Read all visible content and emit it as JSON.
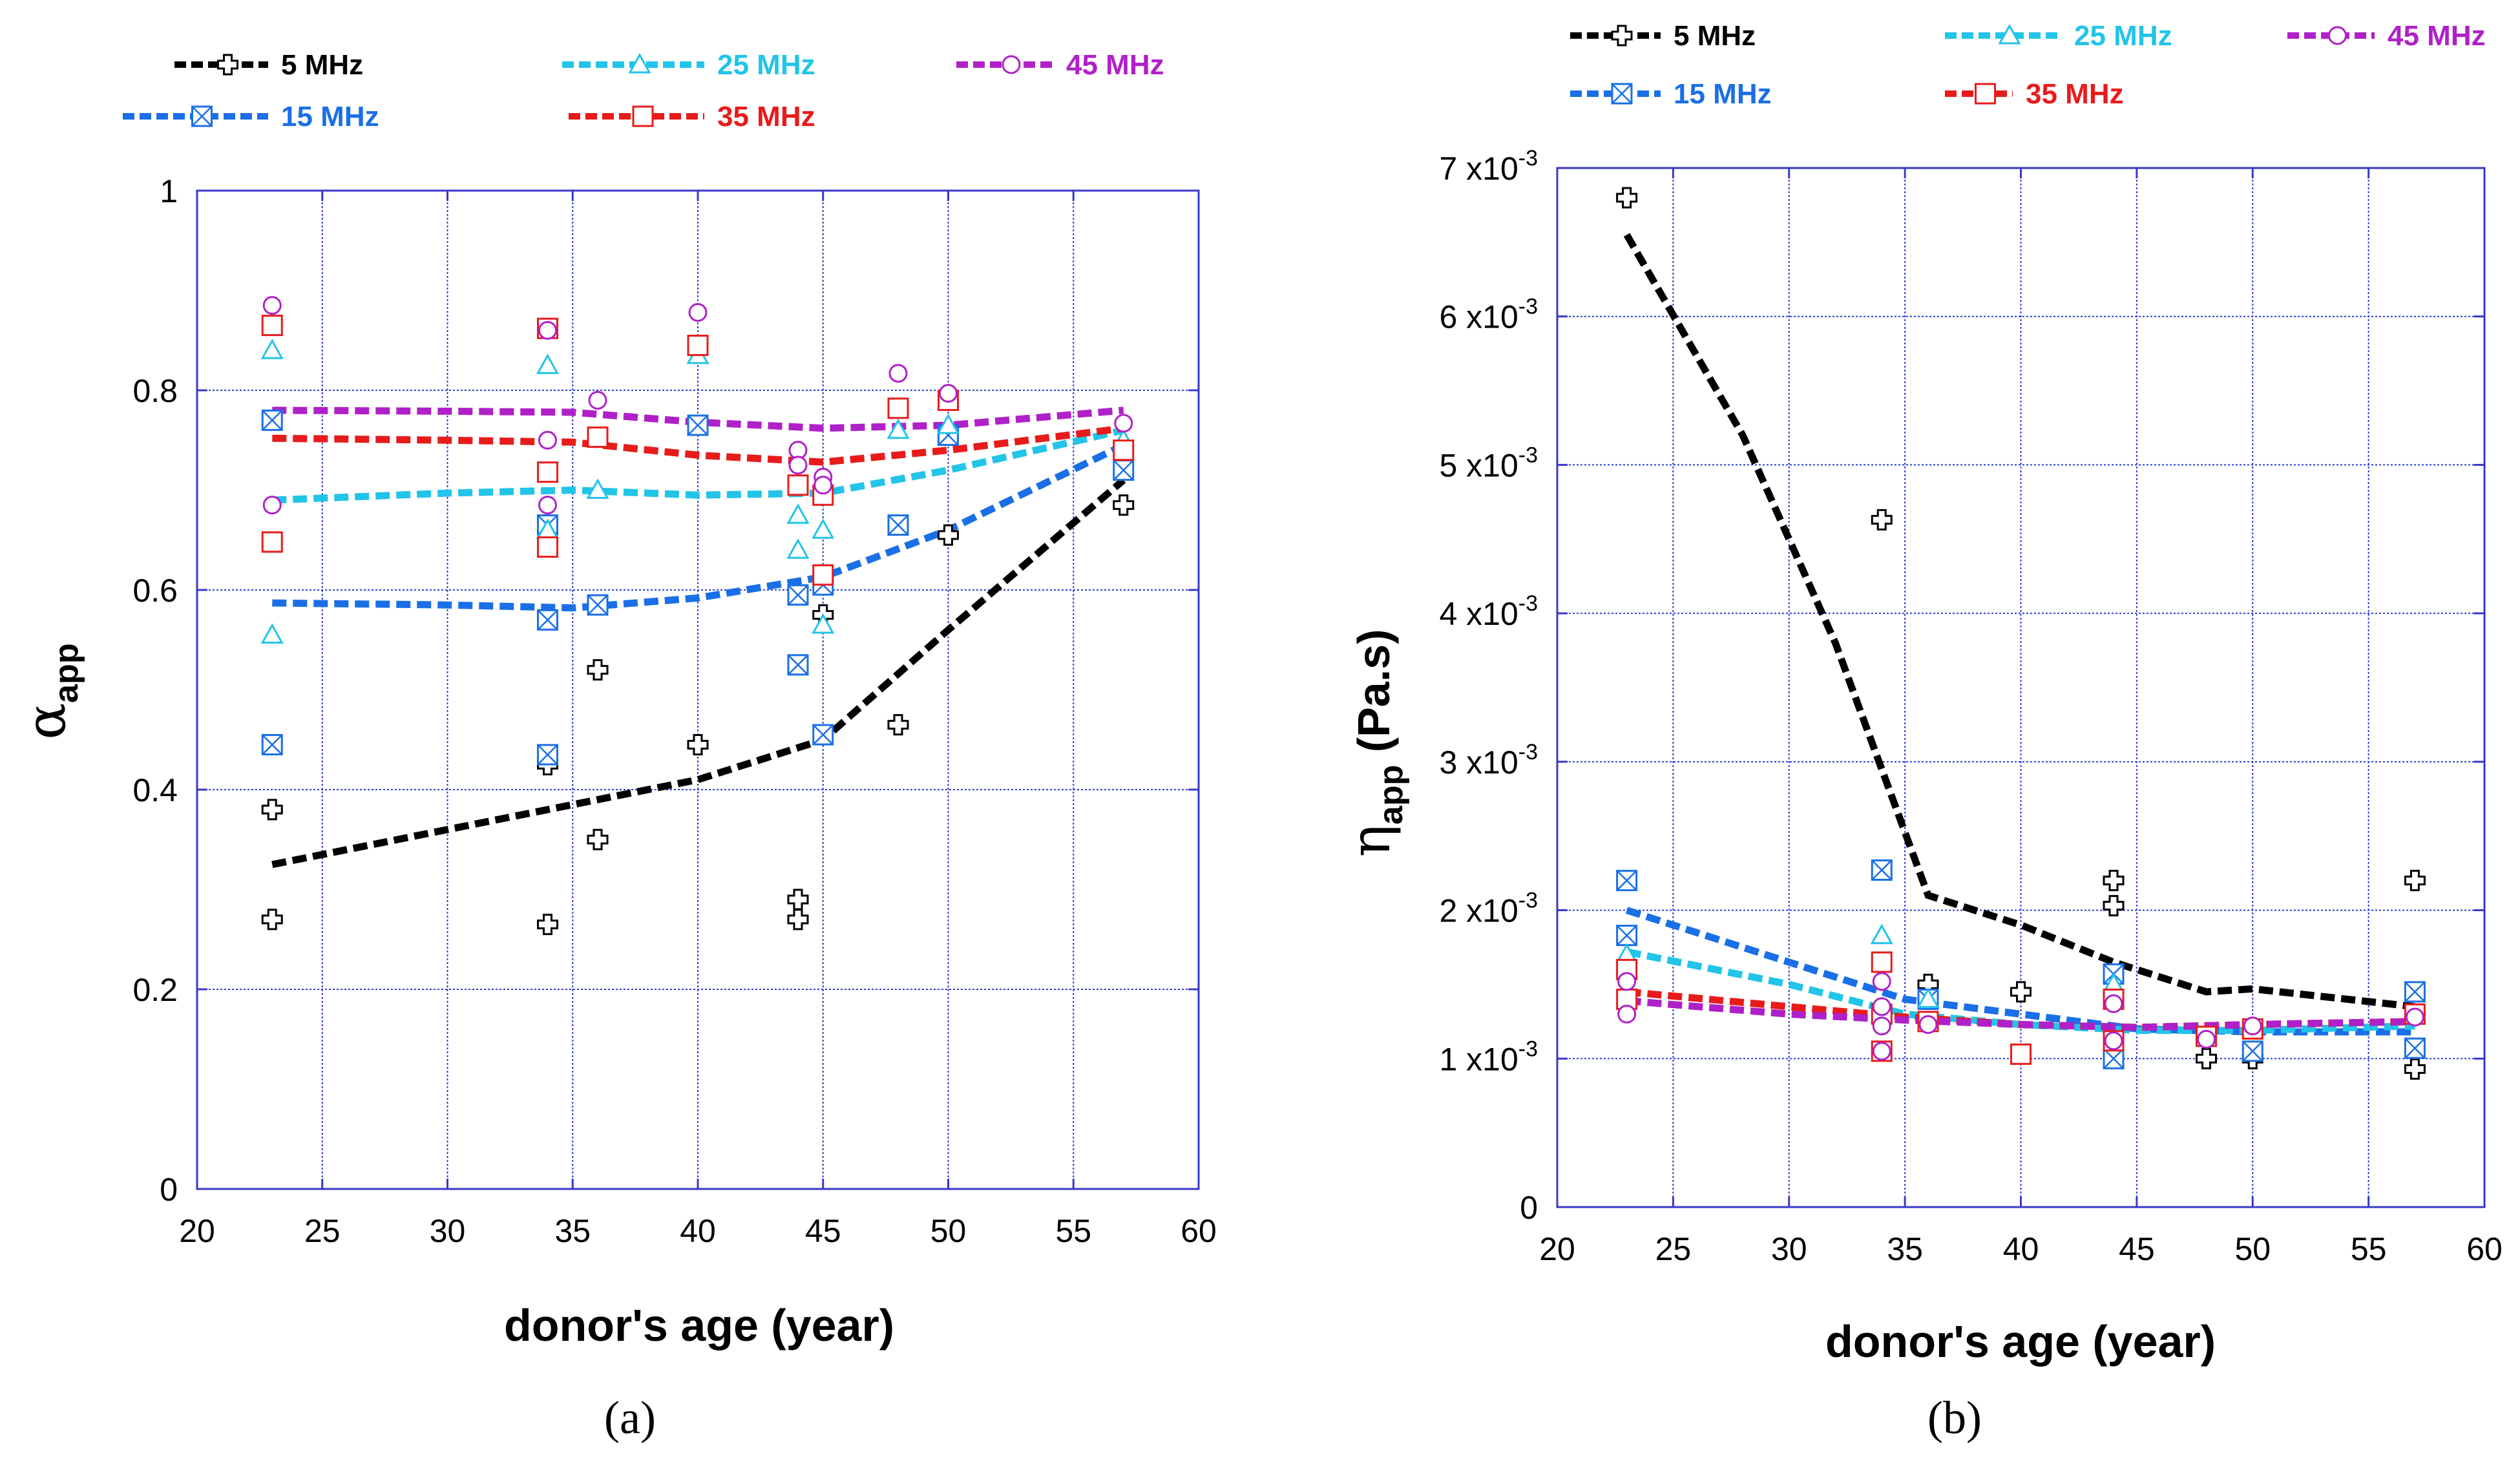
{
  "colors": {
    "5 MHz": "#000000",
    "15 MHz": "#1a6fe6",
    "25 MHz": "#22c4e8",
    "35 MHz": "#e81b1b",
    "45 MHz": "#b020c8",
    "grid": "#2a3ad6",
    "axis": "#3838c8"
  },
  "chart_data": [
    {
      "type": "line",
      "panel": "a",
      "panel_label": "(a)",
      "xlabel": "donor's age (year)",
      "ylabel_main": "α",
      "ylabel_sub": "app",
      "xlim": [
        20,
        60
      ],
      "ylim": [
        0,
        1
      ],
      "xticks": [
        20,
        25,
        30,
        35,
        40,
        45,
        50,
        55,
        60
      ],
      "yticks": [
        0,
        0.2,
        0.4,
        0.6,
        0.8,
        1
      ],
      "ytick_labels": [
        "0",
        "0.2",
        "0.4",
        "0.6",
        "0.8",
        "1"
      ],
      "legend": {
        "position": "top",
        "entries": [
          "5 MHz",
          "15 MHz",
          "25 MHz",
          "35 MHz",
          "45 MHz"
        ]
      },
      "series": [
        {
          "name": "5 MHz",
          "marker": "plus",
          "fit": [
            [
              23,
              0.325
            ],
            [
              30,
              0.36
            ],
            [
              35,
              0.385
            ],
            [
              40,
              0.41
            ],
            [
              45,
              0.45
            ],
            [
              50,
              0.56
            ],
            [
              57,
              0.71
            ]
          ],
          "points": [
            [
              23,
              0.38
            ],
            [
              23,
              0.27
            ],
            [
              34,
              0.425
            ],
            [
              34,
              0.265
            ],
            [
              36,
              0.52
            ],
            [
              36,
              0.35
            ],
            [
              40,
              0.445
            ],
            [
              44,
              0.29
            ],
            [
              44,
              0.27
            ],
            [
              45,
              0.575
            ],
            [
              48,
              0.465
            ],
            [
              50,
              0.655
            ],
            [
              57,
              0.685
            ]
          ]
        },
        {
          "name": "15 MHz",
          "marker": "xbox",
          "fit": [
            [
              23,
              0.587
            ],
            [
              30,
              0.585
            ],
            [
              35,
              0.582
            ],
            [
              40,
              0.592
            ],
            [
              45,
              0.613
            ],
            [
              50,
              0.66
            ],
            [
              57,
              0.745
            ]
          ],
          "points": [
            [
              23,
              0.77
            ],
            [
              23,
              0.445
            ],
            [
              34,
              0.665
            ],
            [
              34,
              0.57
            ],
            [
              34,
              0.435
            ],
            [
              36,
              0.585
            ],
            [
              40,
              0.765
            ],
            [
              44,
              0.595
            ],
            [
              44,
              0.525
            ],
            [
              45,
              0.605
            ],
            [
              45,
              0.455
            ],
            [
              48,
              0.665
            ],
            [
              50,
              0.755
            ],
            [
              57,
              0.72
            ]
          ]
        },
        {
          "name": "25 MHz",
          "marker": "triangle",
          "fit": [
            [
              23,
              0.69
            ],
            [
              30,
              0.697
            ],
            [
              35,
              0.7
            ],
            [
              40,
              0.695
            ],
            [
              45,
              0.697
            ],
            [
              50,
              0.72
            ],
            [
              57,
              0.76
            ]
          ],
          "points": [
            [
              23,
              0.84
            ],
            [
              23,
              0.555
            ],
            [
              34,
              0.825
            ],
            [
              34,
              0.66
            ],
            [
              36,
              0.7
            ],
            [
              40,
              0.835
            ],
            [
              44,
              0.675
            ],
            [
              44,
              0.64
            ],
            [
              45,
              0.66
            ],
            [
              45,
              0.565
            ],
            [
              48,
              0.76
            ],
            [
              50,
              0.765
            ],
            [
              57,
              0.75
            ]
          ]
        },
        {
          "name": "35 MHz",
          "marker": "square",
          "fit": [
            [
              23,
              0.752
            ],
            [
              30,
              0.75
            ],
            [
              35,
              0.748
            ],
            [
              40,
              0.735
            ],
            [
              45,
              0.728
            ],
            [
              50,
              0.74
            ],
            [
              57,
              0.762
            ]
          ],
          "points": [
            [
              23,
              0.865
            ],
            [
              23,
              0.648
            ],
            [
              34,
              0.862
            ],
            [
              34,
              0.718
            ],
            [
              34,
              0.643
            ],
            [
              36,
              0.753
            ],
            [
              40,
              0.845
            ],
            [
              44,
              0.705
            ],
            [
              45,
              0.695
            ],
            [
              45,
              0.615
            ],
            [
              48,
              0.782
            ],
            [
              50,
              0.79
            ],
            [
              57,
              0.74
            ]
          ]
        },
        {
          "name": "45 MHz",
          "marker": "circle",
          "fit": [
            [
              23,
              0.78
            ],
            [
              30,
              0.779
            ],
            [
              35,
              0.778
            ],
            [
              40,
              0.768
            ],
            [
              45,
              0.762
            ],
            [
              50,
              0.765
            ],
            [
              57,
              0.78
            ]
          ],
          "points": [
            [
              23,
              0.885
            ],
            [
              23,
              0.685
            ],
            [
              34,
              0.86
            ],
            [
              34,
              0.75
            ],
            [
              34,
              0.685
            ],
            [
              36,
              0.79
            ],
            [
              40,
              0.878
            ],
            [
              44,
              0.74
            ],
            [
              44,
              0.725
            ],
            [
              45,
              0.713
            ],
            [
              45,
              0.705
            ],
            [
              48,
              0.817
            ],
            [
              50,
              0.797
            ],
            [
              57,
              0.767
            ]
          ]
        }
      ]
    },
    {
      "type": "line",
      "panel": "b",
      "panel_label": "(b)",
      "xlabel": "donor's age (year)",
      "ylabel_main": "η",
      "ylabel_sub": "app",
      "ylabel_unit": " (Pa.s)",
      "xlim": [
        20,
        60
      ],
      "ylim": [
        0,
        0.007
      ],
      "xticks": [
        20,
        25,
        30,
        35,
        40,
        45,
        50,
        55,
        60
      ],
      "yticks": [
        0,
        0.001,
        0.002,
        0.003,
        0.004,
        0.005,
        0.006,
        0.007
      ],
      "ytick_labels": [
        "0",
        "1 x10",
        "2 x10",
        "3 x10",
        "4 x10",
        "5 x10",
        "6 x10",
        "7 x10"
      ],
      "ytick_exponent": "-3",
      "legend": {
        "position": "top",
        "entries": [
          "5 MHz",
          "15 MHz",
          "25 MHz",
          "35 MHz",
          "45 MHz"
        ]
      },
      "series": [
        {
          "name": "5 MHz",
          "marker": "plus",
          "fit": [
            [
              23,
              0.00655
            ],
            [
              28,
              0.0052
            ],
            [
              32,
              0.0038
            ],
            [
              36,
              0.0021
            ],
            [
              40,
              0.0019
            ],
            [
              44,
              0.00165
            ],
            [
              48,
              0.00145
            ],
            [
              50,
              0.00147
            ],
            [
              57,
              0.00135
            ]
          ],
          "points": [
            [
              23,
              0.0068
            ],
            [
              34,
              0.00463
            ],
            [
              36,
              0.0015
            ],
            [
              40,
              0.00145
            ],
            [
              44,
              0.0022
            ],
            [
              44,
              0.00203
            ],
            [
              48,
              0.001
            ],
            [
              50,
              0.001
            ],
            [
              57,
              0.0022
            ],
            [
              57,
              0.00093
            ]
          ]
        },
        {
          "name": "15 MHz",
          "marker": "xbox",
          "fit": [
            [
              23,
              0.002
            ],
            [
              30,
              0.00165
            ],
            [
              35,
              0.0014
            ],
            [
              40,
              0.0013
            ],
            [
              45,
              0.0012
            ],
            [
              50,
              0.00118
            ],
            [
              57,
              0.00118
            ]
          ],
          "points": [
            [
              23,
              0.0022
            ],
            [
              23,
              0.00183
            ],
            [
              34,
              0.00227
            ],
            [
              36,
              0.0014
            ],
            [
              44,
              0.00157
            ],
            [
              44,
              0.001
            ],
            [
              50,
              0.00105
            ],
            [
              57,
              0.00145
            ],
            [
              57,
              0.00107
            ]
          ]
        },
        {
          "name": "25 MHz",
          "marker": "triangle",
          "fit": [
            [
              23,
              0.00172
            ],
            [
              30,
              0.0015
            ],
            [
              35,
              0.0013
            ],
            [
              40,
              0.00123
            ],
            [
              45,
              0.00119
            ],
            [
              50,
              0.00119
            ],
            [
              57,
              0.00122
            ]
          ],
          "points": [
            [
              23,
              0.0017
            ],
            [
              34,
              0.00183
            ],
            [
              34,
              0.0013
            ],
            [
              36,
              0.0014
            ],
            [
              44,
              0.0015
            ],
            [
              57,
              0.0013
            ]
          ]
        },
        {
          "name": "35 MHz",
          "marker": "square",
          "fit": [
            [
              23,
              0.00145
            ],
            [
              30,
              0.00135
            ],
            [
              35,
              0.00128
            ],
            [
              40,
              0.00123
            ],
            [
              45,
              0.00121
            ],
            [
              50,
              0.00123
            ],
            [
              57,
              0.00125
            ]
          ],
          "points": [
            [
              23,
              0.0016
            ],
            [
              23,
              0.0014
            ],
            [
              34,
              0.00165
            ],
            [
              34,
              0.0013
            ],
            [
              34,
              0.00105
            ],
            [
              36,
              0.00125
            ],
            [
              40,
              0.00103
            ],
            [
              44,
              0.0014
            ],
            [
              44,
              0.00112
            ],
            [
              48,
              0.00115
            ],
            [
              50,
              0.0012
            ],
            [
              57,
              0.0013
            ]
          ]
        },
        {
          "name": "45 MHz",
          "marker": "circle",
          "fit": [
            [
              23,
              0.00139
            ],
            [
              30,
              0.0013
            ],
            [
              35,
              0.00126
            ],
            [
              40,
              0.00123
            ],
            [
              45,
              0.00121
            ],
            [
              50,
              0.00123
            ],
            [
              57,
              0.00125
            ]
          ],
          "points": [
            [
              23,
              0.00152
            ],
            [
              23,
              0.0013
            ],
            [
              34,
              0.00152
            ],
            [
              34,
              0.00135
            ],
            [
              34,
              0.00122
            ],
            [
              34,
              0.00105
            ],
            [
              36,
              0.00123
            ],
            [
              44,
              0.00137
            ],
            [
              44,
              0.00112
            ],
            [
              48,
              0.00113
            ],
            [
              50,
              0.00122
            ],
            [
              57,
              0.00128
            ]
          ]
        }
      ]
    }
  ]
}
